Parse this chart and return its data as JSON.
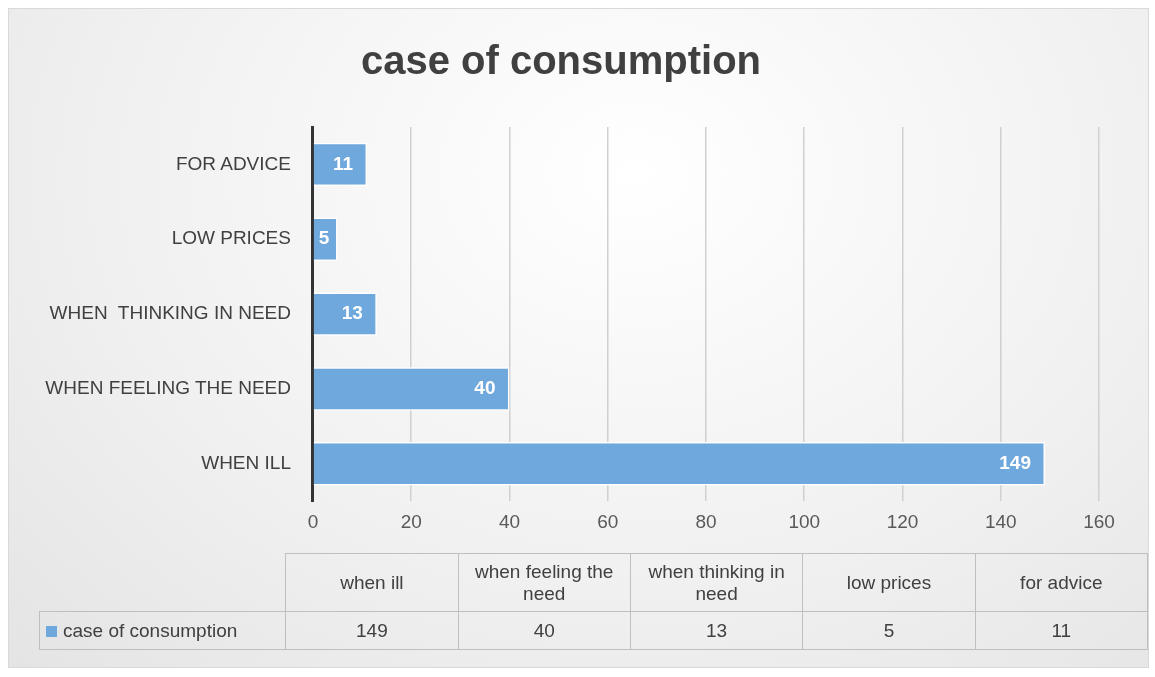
{
  "chart_data": {
    "type": "bar",
    "orientation": "horizontal",
    "title": "case of consumption",
    "categories": [
      "FOR ADVICE",
      "LOW PRICES",
      "WHEN  THINKING IN NEED",
      "WHEN FEELING THE NEED",
      "WHEN ILL"
    ],
    "series": [
      {
        "name": "case of consumption",
        "color": "#6fa8dc",
        "values": [
          11,
          5,
          13,
          40,
          149
        ]
      }
    ],
    "xlim": [
      0,
      160
    ],
    "xticks": [
      0,
      20,
      40,
      60,
      80,
      100,
      120,
      140,
      160
    ],
    "grid": "x",
    "data_labels": true,
    "legend": "bottom",
    "annotations": [
      "when ill",
      "when feeling the need",
      "when  thinking in need",
      "low prices",
      "for advice",
      "149",
      "40",
      "13",
      "5",
      "11"
    ]
  }
}
